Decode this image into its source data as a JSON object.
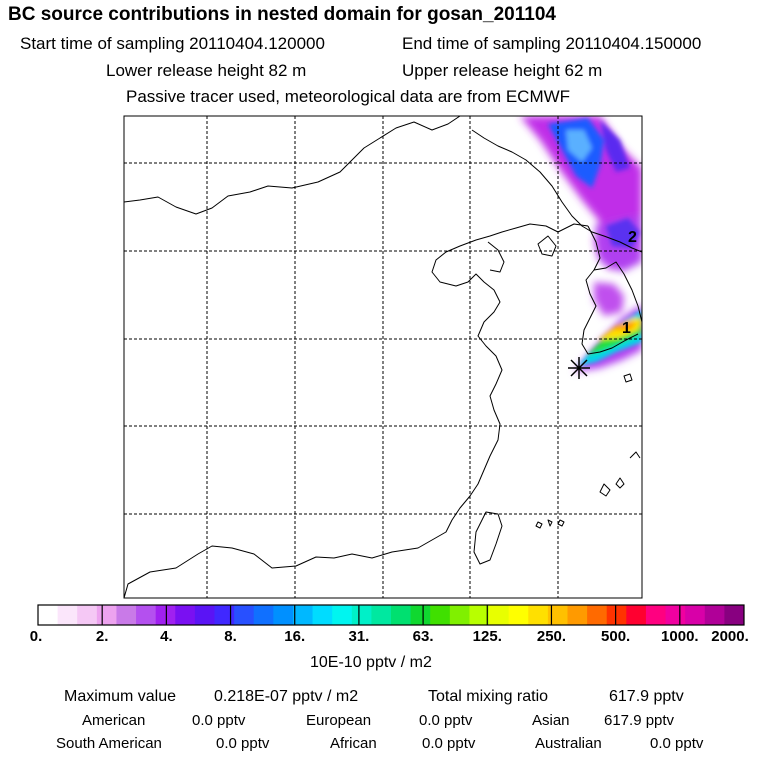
{
  "header": {
    "title": "BC  source contributions in nested domain for gosan_201104",
    "start_label": "Start time of sampling 20110404.120000",
    "end_label": "End time of sampling 20110404.150000",
    "lower_label": "Lower release height   82 m",
    "upper_label": "Upper release height   62 m",
    "note": "Passive tracer used, meteorological data are from ECMWF"
  },
  "map": {
    "markers": [
      "1",
      "2"
    ],
    "station_symbol": "✳"
  },
  "colorbar": {
    "colors": [
      "#ffffff",
      "#fbe6fb",
      "#f5c8f5",
      "#eda3ef",
      "#c97ae8",
      "#b450ef",
      "#a020f0",
      "#7a10f2",
      "#5a14f5",
      "#4028ff",
      "#2850ff",
      "#1070ff",
      "#0090ff",
      "#00b8ff",
      "#00dcff",
      "#00f5f0",
      "#00f0c8",
      "#00e8a0",
      "#00e070",
      "#10d830",
      "#40e000",
      "#80f000",
      "#b8ff00",
      "#e8ff00",
      "#ffff00",
      "#ffe000",
      "#ffc000",
      "#ff9a00",
      "#ff6a00",
      "#ff3300",
      "#ff0030",
      "#ff0080",
      "#f000a0",
      "#d800a8",
      "#b00098",
      "#880080"
    ],
    "labels": [
      "0.",
      "2.",
      "4.",
      "8.",
      "16.",
      "31.",
      "63.",
      "125.",
      "250.",
      "500.",
      "1000.",
      "2000."
    ],
    "unit": "10E-10 pptv / m2"
  },
  "footer": {
    "max_label": "Maximum value",
    "max_value": "0.218E-07 pptv / m2",
    "total_label": "Total mixing ratio",
    "total_value": "617.9 pptv",
    "regions": [
      {
        "name": "American",
        "value": "0.0 pptv"
      },
      {
        "name": "European",
        "value": "0.0 pptv"
      },
      {
        "name": "Asian",
        "value": "617.9 pptv"
      },
      {
        "name": "South American",
        "value": "0.0 pptv"
      },
      {
        "name": "African",
        "value": "0.0 pptv"
      },
      {
        "name": "Australian",
        "value": "0.0 pptv"
      }
    ]
  }
}
